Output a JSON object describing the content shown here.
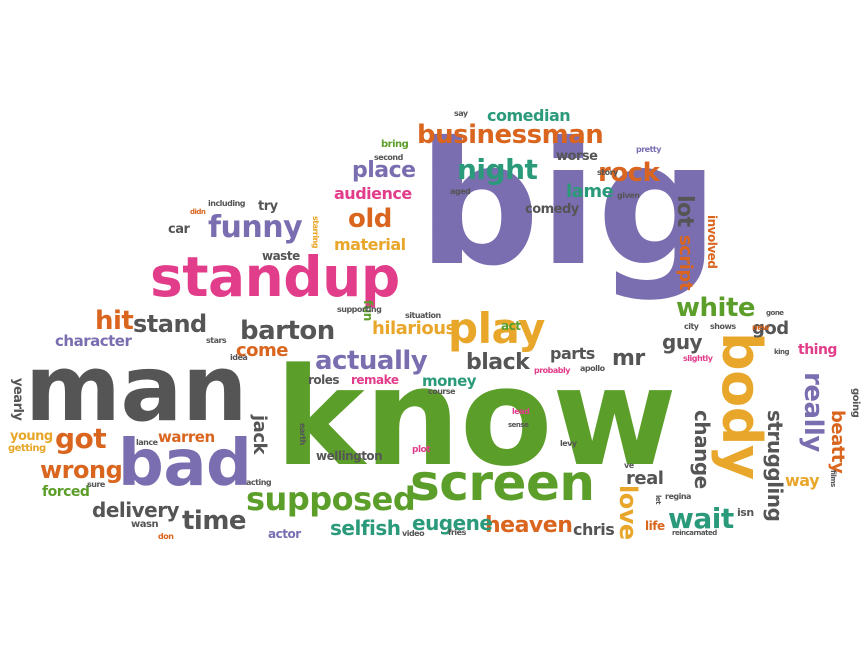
{
  "words": [
    {
      "text": "big",
      "color": "#7a6db0",
      "vertical": false
    },
    {
      "text": "know",
      "color": "#5c9e2a",
      "vertical": false
    },
    {
      "text": "man",
      "color": "#555555",
      "vertical": false
    },
    {
      "text": "standup",
      "color": "#e23d8a",
      "vertical": false
    },
    {
      "text": "bad",
      "color": "#7a6db0",
      "vertical": false
    },
    {
      "text": "screen",
      "color": "#5c9e2a",
      "vertical": false
    },
    {
      "text": "body",
      "color": "#e8a72a",
      "vertical": true
    },
    {
      "text": "play",
      "color": "#e8a72a",
      "vertical": false
    },
    {
      "text": "supposed",
      "color": "#5c9e2a",
      "vertical": false
    },
    {
      "text": "businessman",
      "color": "#d9651e",
      "vertical": false
    },
    {
      "text": "funny",
      "color": "#7a6db0",
      "vertical": false
    },
    {
      "text": "barton",
      "color": "#555555",
      "vertical": false
    },
    {
      "text": "stand",
      "color": "#555555",
      "vertical": false
    },
    {
      "text": "hit",
      "color": "#d9651e",
      "vertical": false
    },
    {
      "text": "actually",
      "color": "#7a6db0",
      "vertical": false
    },
    {
      "text": "time",
      "color": "#555555",
      "vertical": false
    },
    {
      "text": "wrong",
      "color": "#d9651e",
      "vertical": false
    },
    {
      "text": "got",
      "color": "#d9651e",
      "vertical": false
    },
    {
      "text": "rock",
      "color": "#d9651e",
      "vertical": false
    },
    {
      "text": "night",
      "color": "#2a9a7a",
      "vertical": false
    },
    {
      "text": "white",
      "color": "#5c9e2a",
      "vertical": false
    },
    {
      "text": "wait",
      "color": "#2a9a7a",
      "vertical": false
    },
    {
      "text": "old",
      "color": "#d9651e",
      "vertical": false
    },
    {
      "text": "place",
      "color": "#7a6db0",
      "vertical": false
    },
    {
      "text": "black",
      "color": "#555555",
      "vertical": false
    },
    {
      "text": "heaven",
      "color": "#d9651e",
      "vertical": false
    },
    {
      "text": "eugene",
      "color": "#2a9a7a",
      "vertical": false
    },
    {
      "text": "selfish",
      "color": "#2a9a7a",
      "vertical": false
    },
    {
      "text": "delivery",
      "color": "#555555",
      "vertical": false
    },
    {
      "text": "really",
      "color": "#7a6db0",
      "vertical": true
    },
    {
      "text": "beatty",
      "color": "#d9651e",
      "vertical": true
    },
    {
      "text": "love",
      "color": "#e8a72a",
      "vertical": true
    },
    {
      "text": "real",
      "color": "#555555",
      "vertical": false
    },
    {
      "text": "lot",
      "color": "#555555",
      "vertical": true
    },
    {
      "text": "script",
      "color": "#d9651e",
      "vertical": true
    },
    {
      "text": "change",
      "color": "#555555",
      "vertical": true
    },
    {
      "text": "struggling",
      "color": "#555555",
      "vertical": true
    },
    {
      "text": "jack",
      "color": "#555555",
      "vertical": true
    },
    {
      "text": "mr",
      "color": "#555555",
      "vertical": false
    },
    {
      "text": "guy",
      "color": "#555555",
      "vertical": false
    },
    {
      "text": "god",
      "color": "#555555",
      "vertical": false
    },
    {
      "text": "parts",
      "color": "#555555",
      "vertical": false
    },
    {
      "text": "lame",
      "color": "#2a9a7a",
      "vertical": false
    },
    {
      "text": "comedian",
      "color": "#2a9a7a",
      "vertical": false
    },
    {
      "text": "audience",
      "color": "#e23d8a",
      "vertical": false
    },
    {
      "text": "material",
      "color": "#e8a72a",
      "vertical": false
    },
    {
      "text": "hilarious",
      "color": "#e8a72a",
      "vertical": false
    },
    {
      "text": "come",
      "color": "#d9651e",
      "vertical": false
    },
    {
      "text": "warren",
      "color": "#d9651e",
      "vertical": false
    },
    {
      "text": "character",
      "color": "#7a6db0",
      "vertical": false
    },
    {
      "text": "money",
      "color": "#2a9a7a",
      "vertical": false
    },
    {
      "text": "roles",
      "color": "#555555",
      "vertical": false
    },
    {
      "text": "remake",
      "color": "#e23d8a",
      "vertical": false
    },
    {
      "text": "chris",
      "color": "#555555",
      "vertical": false
    },
    {
      "text": "way",
      "color": "#e8a72a",
      "vertical": false
    },
    {
      "text": "thing",
      "color": "#e23d8a",
      "vertical": false
    },
    {
      "text": "comedy",
      "color": "#555555",
      "vertical": false
    },
    {
      "text": "worse",
      "color": "#555555",
      "vertical": false
    },
    {
      "text": "car",
      "color": "#555555",
      "vertical": false
    },
    {
      "text": "try",
      "color": "#555555",
      "vertical": false
    },
    {
      "text": "waste",
      "color": "#555555",
      "vertical": false
    },
    {
      "text": "forced",
      "color": "#5c9e2a",
      "vertical": false
    },
    {
      "text": "young",
      "color": "#e8a72a",
      "vertical": false
    },
    {
      "text": "actor",
      "color": "#7a6db0",
      "vertical": false
    },
    {
      "text": "wellington",
      "color": "#555555",
      "vertical": false
    },
    {
      "text": "act",
      "color": "#5c9e2a",
      "vertical": false
    },
    {
      "text": "fun",
      "color": "#5c9e2a",
      "vertical": true
    },
    {
      "text": "involved",
      "color": "#d9651e",
      "vertical": true
    },
    {
      "text": "yearly",
      "color": "#555555",
      "vertical": true
    },
    {
      "text": "life",
      "color": "#d9651e",
      "vertical": false
    },
    {
      "text": "isn",
      "color": "#555555",
      "vertical": false
    },
    {
      "text": "wasn",
      "color": "#555555",
      "vertical": false
    },
    {
      "text": "getting",
      "color": "#e8a72a",
      "vertical": false
    },
    {
      "text": "going",
      "color": "#555555",
      "vertical": true
    },
    {
      "text": "earth",
      "color": "#555555",
      "vertical": true
    },
    {
      "text": "bring",
      "color": "#5c9e2a",
      "vertical": false
    },
    {
      "text": "second",
      "color": "#555555",
      "vertical": false
    },
    {
      "text": "aged",
      "color": "#555555",
      "vertical": false
    },
    {
      "text": "story",
      "color": "#555555",
      "vertical": false
    },
    {
      "text": "pretty",
      "color": "#7a6db0",
      "vertical": false
    },
    {
      "text": "given",
      "color": "#555555",
      "vertical": false
    },
    {
      "text": "say",
      "color": "#555555",
      "vertical": false
    },
    {
      "text": "including",
      "color": "#555555",
      "vertical": false
    },
    {
      "text": "didn",
      "color": "#d9651e",
      "vertical": false
    },
    {
      "text": "starring",
      "color": "#e8a72a",
      "vertical": true
    },
    {
      "text": "supporting",
      "color": "#555555",
      "vertical": false
    },
    {
      "text": "situation",
      "color": "#555555",
      "vertical": false
    },
    {
      "text": "stars",
      "color": "#555555",
      "vertical": false
    },
    {
      "text": "idea",
      "color": "#555555",
      "vertical": false
    },
    {
      "text": "lance",
      "color": "#555555",
      "vertical": false
    },
    {
      "text": "sure",
      "color": "#555555",
      "vertical": false
    },
    {
      "text": "don",
      "color": "#d9651e",
      "vertical": false
    },
    {
      "text": "acting",
      "color": "#555555",
      "vertical": false
    },
    {
      "text": "video",
      "color": "#555555",
      "vertical": false
    },
    {
      "text": "fries",
      "color": "#555555",
      "vertical": false
    },
    {
      "text": "plot",
      "color": "#e23d8a",
      "vertical": false
    },
    {
      "text": "lead",
      "color": "#e23d8a",
      "vertical": false
    },
    {
      "text": "sense",
      "color": "#555555",
      "vertical": false
    },
    {
      "text": "levy",
      "color": "#555555",
      "vertical": false
    },
    {
      "text": "course",
      "color": "#555555",
      "vertical": false
    },
    {
      "text": "probably",
      "color": "#e23d8a",
      "vertical": false
    },
    {
      "text": "apollo",
      "color": "#555555",
      "vertical": false
    },
    {
      "text": "ve",
      "color": "#555555",
      "vertical": false
    },
    {
      "text": "let",
      "color": "#555555",
      "vertical": true
    },
    {
      "text": "regina",
      "color": "#555555",
      "vertical": false
    },
    {
      "text": "reincarnated",
      "color": "#555555",
      "vertical": false
    },
    {
      "text": "city",
      "color": "#555555",
      "vertical": false
    },
    {
      "text": "shows",
      "color": "#555555",
      "vertical": false
    },
    {
      "text": "new",
      "color": "#d9651e",
      "vertical": false
    },
    {
      "text": "gone",
      "color": "#555555",
      "vertical": false
    },
    {
      "text": "king",
      "color": "#555555",
      "vertical": false
    },
    {
      "text": "slightly",
      "color": "#e23d8a",
      "vertical": false
    },
    {
      "text": "films",
      "color": "#555555",
      "vertical": true
    }
  ]
}
